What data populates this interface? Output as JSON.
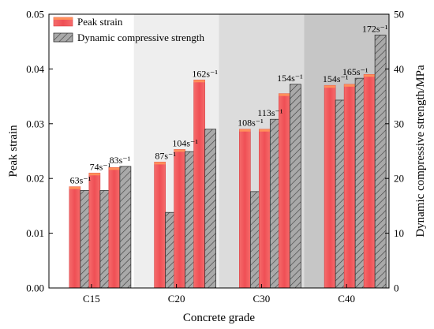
{
  "chart_data": {
    "type": "bar",
    "xlabel": "Concrete grade",
    "ylabel": "Peak strain",
    "ylabel_right": "Dynamic compressive strength/MPa",
    "ylim": [
      0,
      0.05
    ],
    "ylim_right": [
      0,
      50
    ],
    "yticks": [
      "0.00",
      "0.01",
      "0.02",
      "0.03",
      "0.04",
      "0.05"
    ],
    "yticks_right": [
      "0",
      "10",
      "20",
      "30",
      "40",
      "50"
    ],
    "groups": [
      {
        "name": "C15",
        "background": "#ffffff",
        "strain_rates": [
          "63s⁻¹",
          "74s⁻¹",
          "83s⁻¹"
        ]
      },
      {
        "name": "C20",
        "background": "#eeeeee",
        "strain_rates": [
          "87s⁻¹",
          "104s⁻¹",
          "162s⁻¹"
        ]
      },
      {
        "name": "C30",
        "background": "#dcdcdc",
        "strain_rates": [
          "108s⁻¹",
          "113s⁻¹",
          "154s⁻¹"
        ]
      },
      {
        "name": "C40",
        "background": "#c6c6c6",
        "strain_rates": [
          "154s⁻¹",
          "165s⁻¹",
          "172s⁻¹"
        ]
      }
    ],
    "series": [
      {
        "name": "Peak strain",
        "axis": "left",
        "color": "#f0595d",
        "values": [
          0.0185,
          0.021,
          0.022,
          0.023,
          0.0253,
          0.038,
          0.029,
          0.029,
          0.0355,
          0.037,
          0.0372,
          0.039
        ]
      },
      {
        "name": "Dynamic compressive strength",
        "axis": "right",
        "color": "#a9a9a9",
        "pattern": "hatch",
        "values": [
          17.8,
          17.8,
          22.2,
          13.8,
          24.9,
          29.0,
          17.6,
          30.8,
          37.2,
          34.3,
          38.3,
          46.2
        ]
      }
    ],
    "legend_position": "top-left"
  }
}
